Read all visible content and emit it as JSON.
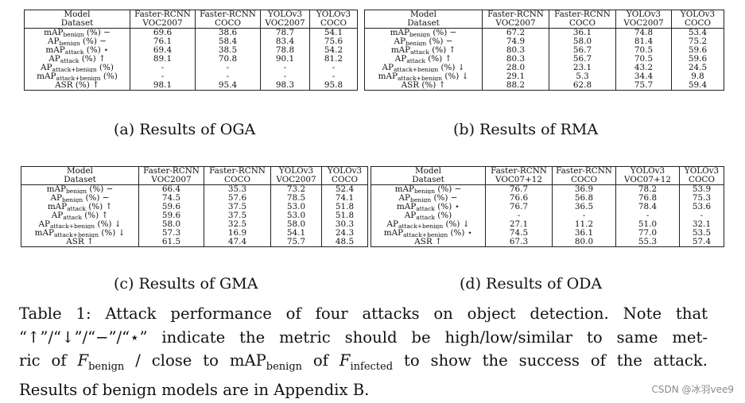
{
  "tables": [
    {
      "id": "oga",
      "caption": "(a) Results of OGA",
      "header_row1": [
        "Model",
        "Faster-RCNN",
        "Faster-RCNN",
        "YOLOv3",
        "YOLOv3"
      ],
      "header_row2": [
        "Dataset",
        "VOC2007",
        "COCO",
        "VOC2007",
        "COCO"
      ],
      "rows": [
        {
          "base": "mAP",
          "sub": "benign",
          "tail": " (%) −",
          "values": [
            "69.6",
            "38.6",
            "78.7",
            "54.1"
          ]
        },
        {
          "base": "AP",
          "sub": "benign",
          "tail": " (%) −",
          "values": [
            "76.1",
            "58.4",
            "83.4",
            "75.6"
          ]
        },
        {
          "base": "mAP",
          "sub": "attack",
          "tail": " (%) ⋆",
          "values": [
            "69.4",
            "38.5",
            "78.8",
            "54.2"
          ]
        },
        {
          "base": "AP",
          "sub": "attack",
          "tail": " (%) ↑",
          "values": [
            "89.1",
            "70.8",
            "90.1",
            "81.2"
          ]
        },
        {
          "base": "AP",
          "sub": "attack+benign",
          "tail": " (%)",
          "values": [
            "-",
            "-",
            "-",
            "-"
          ]
        },
        {
          "base": "mAP",
          "sub": "attack+benign",
          "tail": " (%)",
          "values": [
            "-",
            "-",
            "-",
            "-"
          ]
        },
        {
          "base": "ASR",
          "sub": "",
          "tail": " (%) ↑",
          "values": [
            "98.1",
            "95.4",
            "98.3",
            "95.8"
          ]
        }
      ]
    },
    {
      "id": "rma",
      "caption": "(b) Results of RMA",
      "header_row1": [
        "Model",
        "Faster-RCNN",
        "Faster-RCNN",
        "YOLOv3",
        "YOLOv3"
      ],
      "header_row2": [
        "Dataset",
        "VOC2007",
        "COCO",
        "VOC2007",
        "COCO"
      ],
      "rows": [
        {
          "base": "mAP",
          "sub": "benign",
          "tail": " (%) −",
          "values": [
            "67.2",
            "36.1",
            "74.8",
            "53.4"
          ]
        },
        {
          "base": "AP",
          "sub": "benign",
          "tail": " (%) −",
          "values": [
            "74.9",
            "58.0",
            "81.4",
            "75.2"
          ]
        },
        {
          "base": "mAP",
          "sub": "attack",
          "tail": " (%) ↑",
          "values": [
            "80.3",
            "56.7",
            "70.5",
            "59.6"
          ]
        },
        {
          "base": "AP",
          "sub": "attack",
          "tail": " (%) ↑",
          "values": [
            "80.3",
            "56.7",
            "70.5",
            "59.6"
          ]
        },
        {
          "base": "AP",
          "sub": "attack+benign",
          "tail": " (%) ↓",
          "values": [
            "28.0",
            "23.1",
            "43.2",
            "24.5"
          ]
        },
        {
          "base": "mAP",
          "sub": "attack+benign",
          "tail": " (%) ↓",
          "values": [
            "29.1",
            "5.3",
            "34.4",
            "9.8"
          ]
        },
        {
          "base": "ASR",
          "sub": "",
          "tail": " (%) ↑",
          "values": [
            "88.2",
            "62.8",
            "75.7",
            "59.4"
          ]
        }
      ]
    },
    {
      "id": "gma",
      "caption": "(c) Results of GMA",
      "header_row1": [
        "Model",
        "Faster-RCNN",
        "Faster-RCNN",
        "YOLOv3",
        "YOLOv3"
      ],
      "header_row2": [
        "Dataset",
        "VOC2007",
        "COCO",
        "VOC2007",
        "COCO"
      ],
      "rows": [
        {
          "base": "mAP",
          "sub": "benign",
          "tail": " (%) −",
          "values": [
            "66.4",
            "35.3",
            "73.2",
            "52.4"
          ]
        },
        {
          "base": "AP",
          "sub": "benign",
          "tail": " (%) −",
          "values": [
            "74.5",
            "57.6",
            "78.5",
            "74.1"
          ]
        },
        {
          "base": "mAP",
          "sub": "attack",
          "tail": " (%) ↑",
          "values": [
            "59.6",
            "37.5",
            "53.0",
            "51.8"
          ]
        },
        {
          "base": "AP",
          "sub": "attack",
          "tail": " (%) ↑",
          "values": [
            "59.6",
            "37.5",
            "53.0",
            "51.8"
          ]
        },
        {
          "base": "AP",
          "sub": "attack+benign",
          "tail": " (%) ↓",
          "values": [
            "58.0",
            "32.5",
            "58.0",
            "30.3"
          ]
        },
        {
          "base": "mAP",
          "sub": "attack+benign",
          "tail": " (%) ↓",
          "values": [
            "57.3",
            "16.9",
            "54.1",
            "24.3"
          ]
        },
        {
          "base": "ASR",
          "sub": "",
          "tail": " ↑",
          "values": [
            "61.5",
            "47.4",
            "75.7",
            "48.5"
          ]
        }
      ]
    },
    {
      "id": "oda",
      "caption": "(d) Results of ODA",
      "header_row1": [
        "Model",
        "Faster-RCNN",
        "Faster-RCNN",
        "YOLOv3",
        "YOLOv3"
      ],
      "header_row2": [
        "Dataset",
        "VOC07+12",
        "COCO",
        "VOC07+12",
        "COCO"
      ],
      "rows": [
        {
          "base": "mAP",
          "sub": "benign",
          "tail": " (%) −",
          "values": [
            "76.7",
            "36.9",
            "78.2",
            "53.9"
          ]
        },
        {
          "base": "AP",
          "sub": "benign",
          "tail": " (%) −",
          "values": [
            "76.6",
            "56.8",
            "76.8",
            "75.3"
          ]
        },
        {
          "base": "mAP",
          "sub": "attack",
          "tail": " (%) ⋆",
          "values": [
            "76.7",
            "36.5",
            "78.4",
            "53.6"
          ]
        },
        {
          "base": "AP",
          "sub": "attack",
          "tail": " (%)",
          "values": [
            "-",
            "-",
            "-",
            "-"
          ]
        },
        {
          "base": "AP",
          "sub": "attack+benign",
          "tail": " (%) ↓",
          "values": [
            "27.1",
            "11.2",
            "51.0",
            "32.1"
          ]
        },
        {
          "base": "mAP",
          "sub": "attack+benign",
          "tail": " (%) ⋆",
          "values": [
            "74.5",
            "36.1",
            "77.0",
            "53.5"
          ]
        },
        {
          "base": "ASR",
          "sub": "",
          "tail": " ↑",
          "values": [
            "67.3",
            "80.0",
            "55.3",
            "57.4"
          ]
        }
      ]
    }
  ],
  "main_caption": {
    "line1": "Table 1: Attack performance of four attacks on object detection. Note that",
    "line2": "“↑”/“↓”/“−”/“⋆” indicate the metric should be high/low/similar to same met-",
    "line3_a": "ric of ",
    "line3_F": "F",
    "line3_sub1": "benign",
    "line3_b": " / close to mAP",
    "line3_sub2": "benign",
    "line3_c": " of ",
    "line3_F2": "F",
    "line3_sub3": "infected",
    "line3_d": " to show the success of the attack.",
    "line4": "Results of benign models are in Appendix B."
  },
  "watermark": "CSDN @冰羽vee9"
}
